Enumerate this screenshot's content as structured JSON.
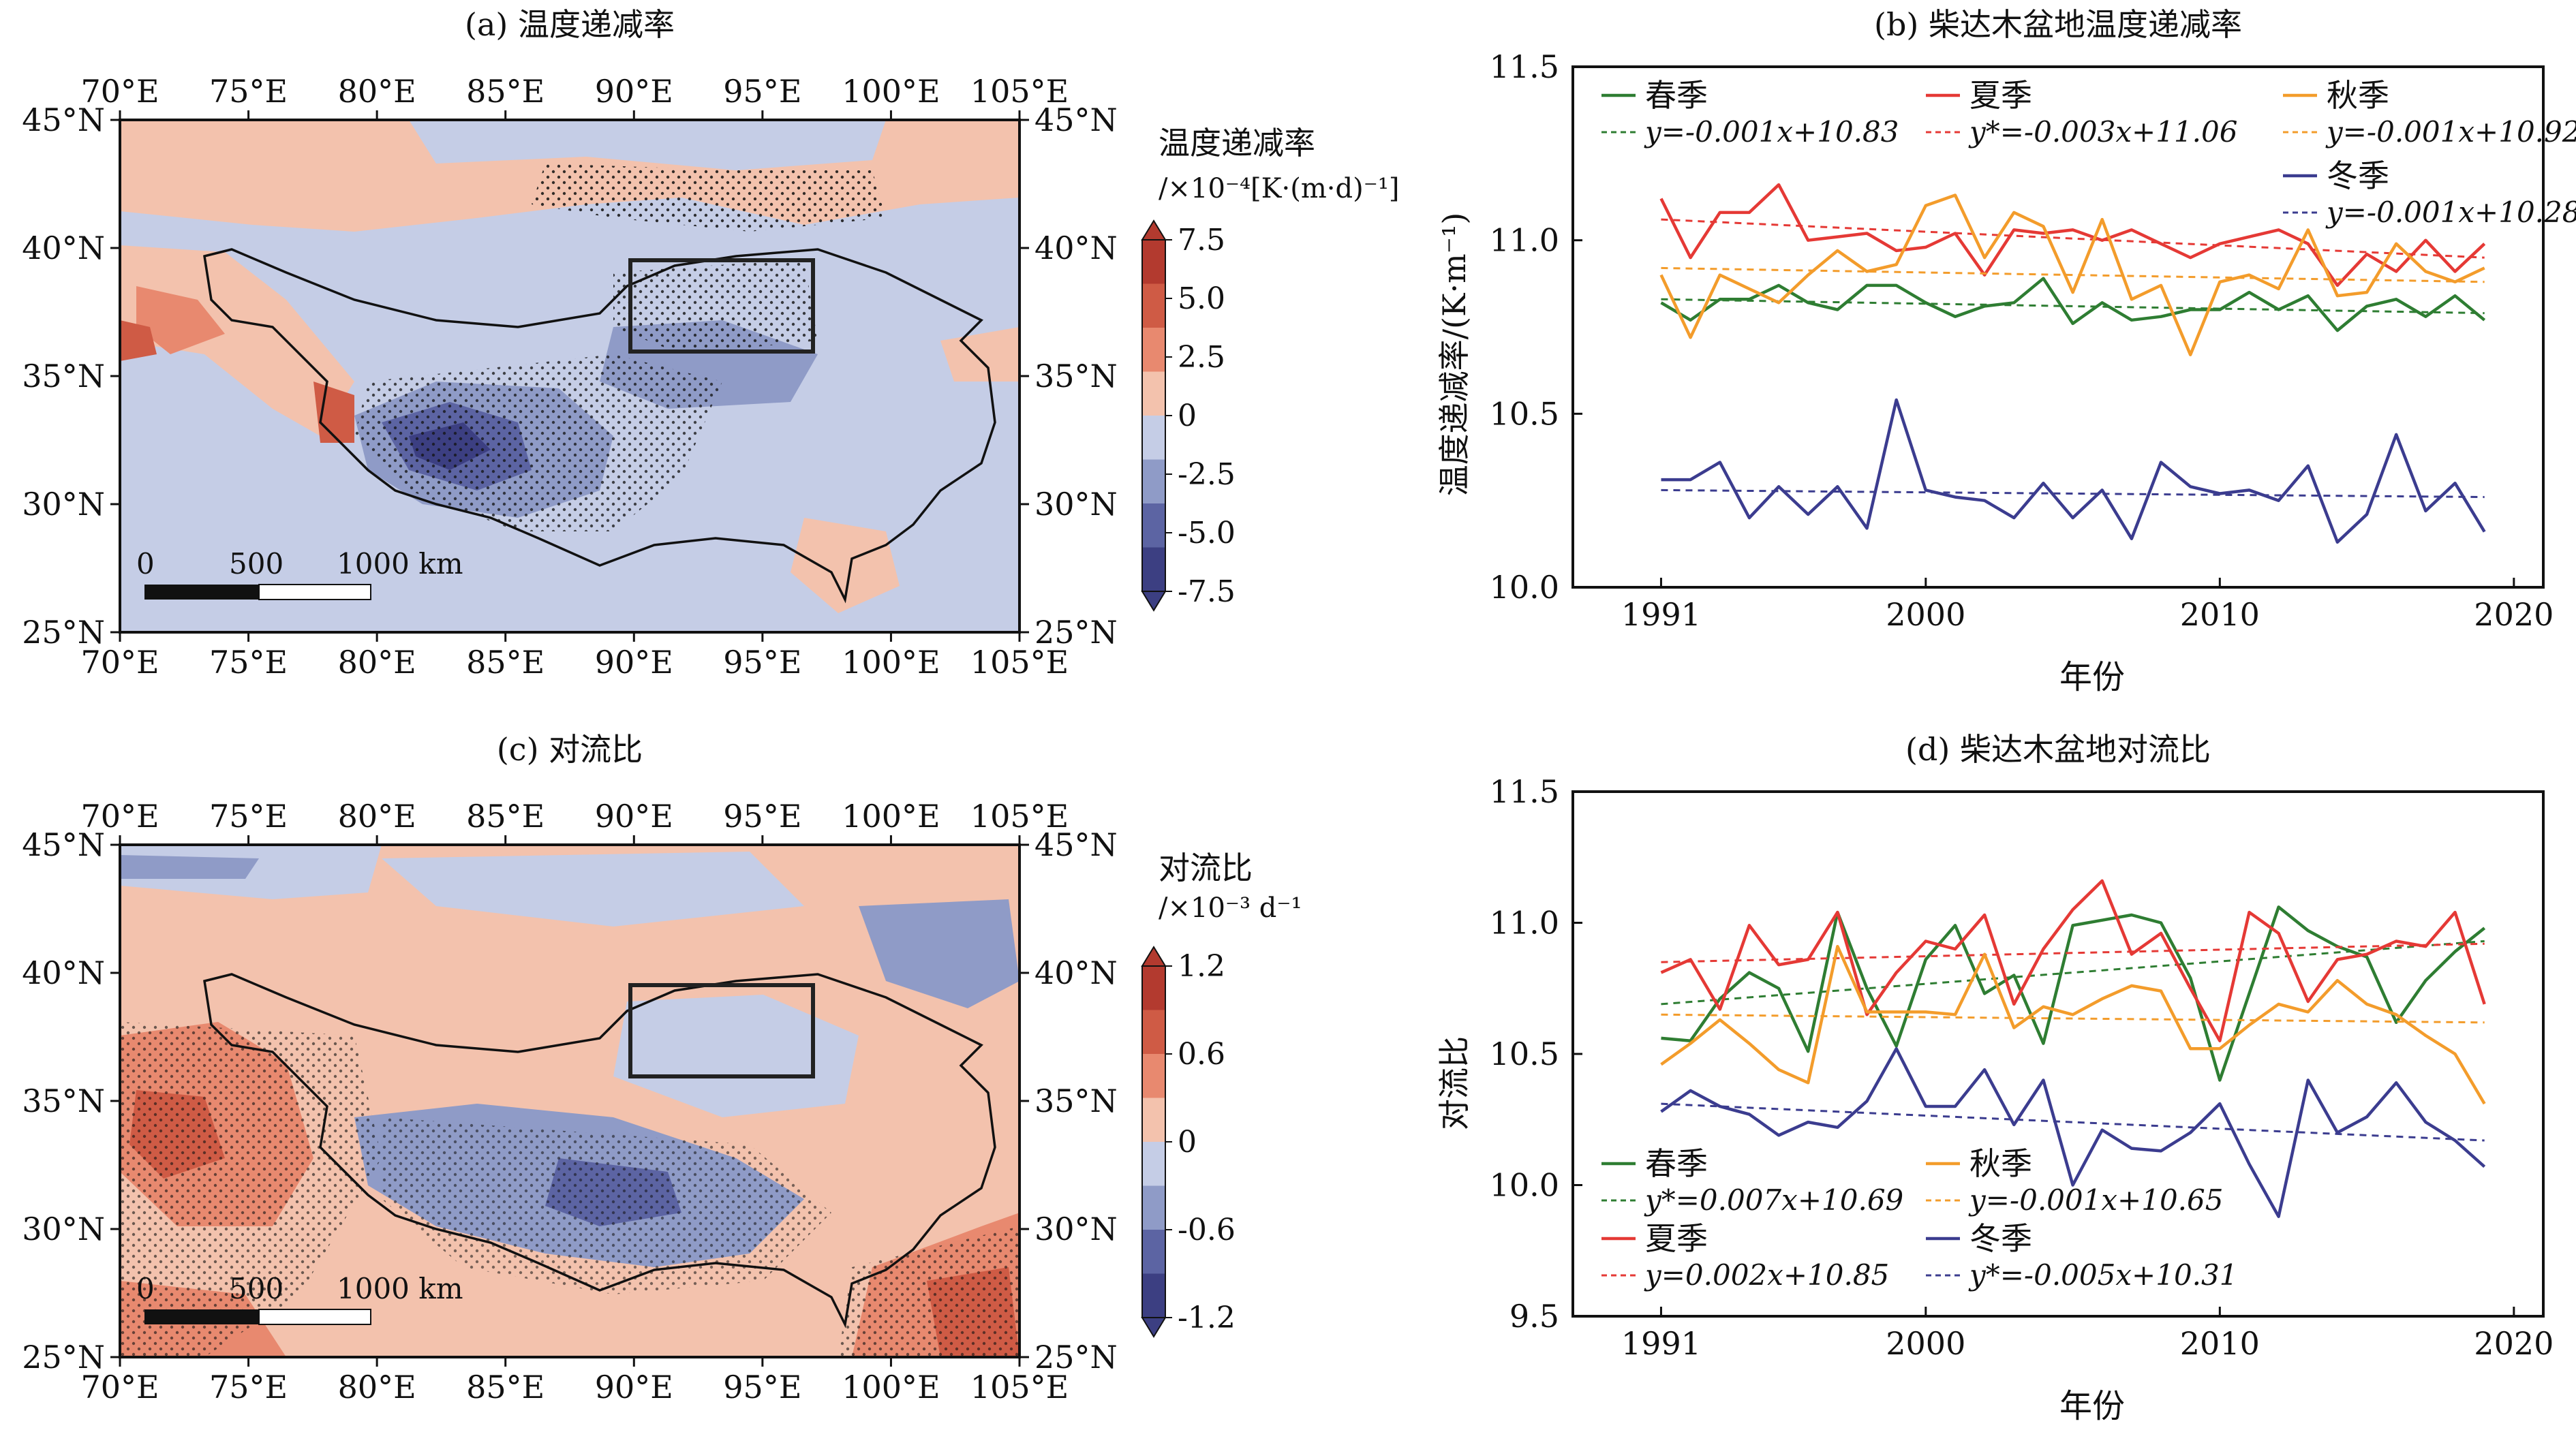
{
  "panels": {
    "a": {
      "title": "(a) 温度递减率",
      "colorbar_title": "温度递减率",
      "colorbar_unit": "/×10⁻⁴[K·(m·d)⁻¹]",
      "colorbar_ticks": [
        "7.5",
        "5.0",
        "2.5",
        "0",
        "-2.5",
        "-5.0",
        "-7.5"
      ],
      "colors": [
        "#b33a2f",
        "#cf5b45",
        "#e8896f",
        "#f3c2ad",
        "#c5cde6",
        "#8f9bc7",
        "#5c64a3",
        "#3c3f82"
      ]
    },
    "b": {
      "title": "(b) 柴达木盆地温度递减率",
      "ylabel": "温度递减率/(K·m⁻¹)",
      "xlabel": "年份"
    },
    "c": {
      "title": "(c) 对流比",
      "colorbar_title": "对流比",
      "colorbar_unit": "/×10⁻³ d⁻¹",
      "colorbar_ticks": [
        "1.2",
        "0.6",
        "0",
        "-0.6",
        "-1.2"
      ],
      "colors": [
        "#b33a2f",
        "#cf5b45",
        "#e8896f",
        "#f3c2ad",
        "#c5cde6",
        "#8f9bc7",
        "#5c64a3",
        "#3c3f82"
      ]
    },
    "d": {
      "title": "(d) 柴达木盆地对流比",
      "ylabel": "对流比",
      "xlabel": "年份"
    }
  },
  "map": {
    "lon_ticks": [
      "70°E",
      "75°E",
      "80°E",
      "85°E",
      "90°E",
      "95°E",
      "100°E",
      "105°E"
    ],
    "lat_ticks": [
      "45°N",
      "40°N",
      "35°N",
      "30°N",
      "25°N"
    ],
    "scalebar": [
      "0",
      "500",
      "1000 km"
    ],
    "box": {
      "lon": [
        90,
        97
      ],
      "lat": [
        36,
        39.5
      ]
    }
  },
  "chart_data": [
    {
      "type": "line",
      "panel": "b",
      "title": "(b) 柴达木盆地温度递减率",
      "xlabel": "年份",
      "ylabel": "温度递减率/(K·m⁻¹)",
      "xlim": [
        1988,
        2021
      ],
      "ylim": [
        10.0,
        11.5
      ],
      "xticks": [
        1991,
        2000,
        2010,
        2020
      ],
      "yticks": [
        "10.0",
        "10.5",
        "11.0",
        "11.5"
      ],
      "x": [
        1991,
        1992,
        1993,
        1994,
        1995,
        1996,
        1997,
        1998,
        1999,
        2000,
        2001,
        2002,
        2003,
        2004,
        2005,
        2006,
        2007,
        2008,
        2009,
        2010,
        2011,
        2012,
        2013,
        2014,
        2015,
        2016,
        2017,
        2018,
        2019
      ],
      "series": [
        {
          "name": "春季",
          "color": "#2e7d32",
          "trend": "y=-0.001x+10.83",
          "trend_start": 10.83,
          "trend_end": 10.79,
          "values": [
            10.82,
            10.77,
            10.83,
            10.83,
            10.87,
            10.82,
            10.8,
            10.87,
            10.87,
            10.82,
            10.78,
            10.81,
            10.82,
            10.89,
            10.76,
            10.82,
            10.77,
            10.78,
            10.8,
            10.8,
            10.85,
            10.8,
            10.84,
            10.74,
            10.81,
            10.83,
            10.78,
            10.84,
            10.77
          ]
        },
        {
          "name": "夏季",
          "color": "#e53935",
          "trend": "y*=-0.003x+11.06",
          "trend_start": 11.06,
          "trend_end": 10.95,
          "values": [
            11.12,
            10.95,
            11.08,
            11.08,
            11.16,
            11.0,
            11.01,
            11.02,
            10.97,
            10.98,
            11.02,
            10.9,
            11.03,
            11.02,
            11.03,
            11.0,
            11.03,
            10.99,
            10.95,
            10.99,
            11.01,
            11.03,
            10.99,
            10.87,
            10.96,
            10.91,
            11.0,
            10.91,
            10.99
          ]
        },
        {
          "name": "秋季",
          "color": "#f39c2b",
          "trend": "y=-0.001x+10.92",
          "trend_start": 10.92,
          "trend_end": 10.88,
          "values": [
            10.9,
            10.72,
            10.9,
            10.86,
            10.82,
            10.9,
            10.97,
            10.91,
            10.93,
            11.1,
            11.13,
            10.95,
            11.08,
            11.04,
            10.85,
            11.06,
            10.83,
            10.87,
            10.67,
            10.88,
            10.9,
            10.86,
            11.03,
            10.84,
            10.85,
            10.99,
            10.91,
            10.88,
            10.92
          ]
        },
        {
          "name": "冬季",
          "color": "#3b3c8f",
          "trend": "y=-0.001x+10.28",
          "trend_start": 10.28,
          "trend_end": 10.26,
          "values": [
            10.31,
            10.31,
            10.36,
            10.2,
            10.29,
            10.21,
            10.29,
            10.17,
            10.54,
            10.28,
            10.26,
            10.25,
            10.2,
            10.3,
            10.2,
            10.28,
            10.14,
            10.36,
            10.29,
            10.27,
            10.28,
            10.25,
            10.35,
            10.13,
            10.21,
            10.44,
            10.22,
            10.3,
            10.16
          ]
        }
      ]
    },
    {
      "type": "line",
      "panel": "d",
      "title": "(d) 柴达木盆地对流比",
      "xlabel": "年份",
      "ylabel": "对流比",
      "xlim": [
        1988,
        2021
      ],
      "ylim": [
        9.5,
        11.5
      ],
      "xticks": [
        1991,
        2000,
        2010,
        2020
      ],
      "yticks": [
        "9.5",
        "10.0",
        "10.5",
        "11.0",
        "11.5"
      ],
      "x": [
        1991,
        1992,
        1993,
        1994,
        1995,
        1996,
        1997,
        1998,
        1999,
        2000,
        2001,
        2002,
        2003,
        2004,
        2005,
        2006,
        2007,
        2008,
        2009,
        2010,
        2011,
        2012,
        2013,
        2014,
        2015,
        2016,
        2017,
        2018,
        2019
      ],
      "series": [
        {
          "name": "春季",
          "color": "#2e7d32",
          "trend": "y*=0.007x+10.69",
          "trend_start": 10.69,
          "trend_end": 10.93,
          "values": [
            10.56,
            10.55,
            10.71,
            10.81,
            10.75,
            10.51,
            11.04,
            10.75,
            10.53,
            10.86,
            10.99,
            10.73,
            10.8,
            10.54,
            10.99,
            11.01,
            11.03,
            11.0,
            10.79,
            10.4,
            10.73,
            11.06,
            10.97,
            10.91,
            10.87,
            10.62,
            10.78,
            10.89,
            10.98
          ]
        },
        {
          "name": "夏季",
          "color": "#e53935",
          "trend": "y=0.002x+10.85",
          "trend_start": 10.85,
          "trend_end": 10.92,
          "values": [
            10.81,
            10.86,
            10.67,
            10.99,
            10.84,
            10.86,
            11.04,
            10.65,
            10.81,
            10.93,
            10.9,
            11.03,
            10.69,
            10.9,
            11.05,
            11.16,
            10.88,
            10.96,
            10.75,
            10.55,
            11.04,
            10.96,
            10.7,
            10.86,
            10.88,
            10.93,
            10.91,
            11.04,
            10.69
          ]
        },
        {
          "name": "秋季",
          "color": "#f39c2b",
          "trend": "y=-0.001x+10.65",
          "trend_start": 10.65,
          "trend_end": 10.62,
          "values": [
            10.46,
            10.54,
            10.63,
            10.54,
            10.44,
            10.39,
            10.91,
            10.66,
            10.66,
            10.66,
            10.65,
            10.88,
            10.6,
            10.68,
            10.65,
            10.71,
            10.76,
            10.74,
            10.52,
            10.52,
            10.61,
            10.69,
            10.66,
            10.78,
            10.69,
            10.65,
            10.57,
            10.5,
            10.31
          ]
        },
        {
          "name": "冬季",
          "color": "#3b3c8f",
          "trend": "y*=-0.005x+10.31",
          "trend_start": 10.31,
          "trend_end": 10.17,
          "values": [
            10.28,
            10.36,
            10.3,
            10.27,
            10.19,
            10.24,
            10.22,
            10.32,
            10.52,
            10.3,
            10.3,
            10.44,
            10.23,
            10.4,
            10.0,
            10.21,
            10.14,
            10.13,
            10.2,
            10.31,
            10.08,
            9.88,
            10.4,
            10.2,
            10.26,
            10.39,
            10.24,
            10.17,
            10.07
          ]
        }
      ]
    }
  ]
}
